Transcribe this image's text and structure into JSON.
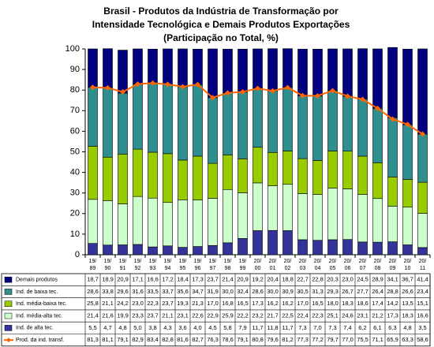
{
  "chart_data": {
    "type": "bar",
    "stacked": true,
    "title": [
      "Brasil - Produtos da Indústria de Transformação por",
      "Intensidade Tecnológica e Demais Produtos Exportações",
      "(Participação no Total, %)"
    ],
    "categories": [
      [
        "19/",
        "89"
      ],
      [
        "19/",
        "90"
      ],
      [
        "19/",
        "91"
      ],
      [
        "19/",
        "92"
      ],
      [
        "19/",
        "93"
      ],
      [
        "19/",
        "94"
      ],
      [
        "19/",
        "95"
      ],
      [
        "19/",
        "96"
      ],
      [
        "19/",
        "97"
      ],
      [
        "19/",
        "98"
      ],
      [
        "19/",
        "99"
      ],
      [
        "20/",
        "00"
      ],
      [
        "20/",
        "01"
      ],
      [
        "20/",
        "02"
      ],
      [
        "20/",
        "03"
      ],
      [
        "20/",
        "04"
      ],
      [
        "20/",
        "05"
      ],
      [
        "20/",
        "06"
      ],
      [
        "20/",
        "07"
      ],
      [
        "20/",
        "08"
      ],
      [
        "20/",
        "09"
      ],
      [
        "20/",
        "10"
      ],
      [
        "20/",
        "11"
      ]
    ],
    "ylim": [
      0,
      100
    ],
    "yticks": [
      0,
      10,
      20,
      30,
      40,
      50,
      60,
      70,
      80,
      90,
      100
    ],
    "grid": false,
    "series": [
      {
        "name": "Demais produtos",
        "color": "#000080",
        "values": [
          18.7,
          18.9,
          20.9,
          17.1,
          16.6,
          17.2,
          18.4,
          17.3,
          23.7,
          21.4,
          20.9,
          19.2,
          20.4,
          18.8,
          22.7,
          22.8,
          20.3,
          23.0,
          24.5,
          28.9,
          34.1,
          36.7,
          41.4
        ],
        "value_labels": [
          "18,7",
          "18,9",
          "20,9",
          "17,1",
          "16,6",
          "17,2",
          "18,4",
          "17,3",
          "23,7",
          "21,4",
          "20,9",
          "19,2",
          "20,4",
          "18,8",
          "22,7",
          "22,8",
          "20,3",
          "23,0",
          "24,5",
          "28,9",
          "34,1",
          "36,7",
          "41,4"
        ]
      },
      {
        "name": "Ind. de baixa tec.",
        "color": "#2f8f8f",
        "values": [
          28.6,
          33.8,
          29.6,
          31.6,
          33.5,
          33.7,
          35.6,
          34.7,
          31.9,
          30.0,
          32.4,
          28.6,
          30.0,
          30.9,
          30.5,
          31.3,
          29.3,
          26.7,
          27.7,
          26.4,
          28.8,
          26.6,
          23.4
        ],
        "value_labels": [
          "28,6",
          "33,8",
          "29,6",
          "31,6",
          "33,5",
          "33,7",
          "35,6",
          "34,7",
          "31,9",
          "30,0",
          "32,4",
          "28,6",
          "30,0",
          "30,9",
          "30,5",
          "31,3",
          "29,3",
          "26,7",
          "27,7",
          "26,4",
          "28,8",
          "26,6",
          "23,4"
        ]
      },
      {
        "name": "Ind. média-baixa tec.",
        "color": "#99cc00",
        "values": [
          25.8,
          21.1,
          24.2,
          23.0,
          22.3,
          23.7,
          19.3,
          21.3,
          17.0,
          16.8,
          16.5,
          17.3,
          16.2,
          16.2,
          17.0,
          16.5,
          18.0,
          18.3,
          18.6,
          17.4,
          14.2,
          13.5,
          15.1
        ],
        "value_labels": [
          "25,8",
          "21,1",
          "24,2",
          "23,0",
          "22,3",
          "23,7",
          "19,3",
          "21,3",
          "17,0",
          "16,8",
          "16,5",
          "17,3",
          "16,2",
          "16,2",
          "17,0",
          "16,5",
          "18,0",
          "18,3",
          "18,6",
          "17,4",
          "14,2",
          "13,5",
          "15,1"
        ]
      },
      {
        "name": "Ind. média-alta tec.",
        "color": "#ccffcc",
        "values": [
          21.4,
          21.6,
          19.9,
          23.3,
          23.7,
          21.1,
          23.1,
          22.6,
          22.9,
          25.9,
          22.2,
          23.2,
          21.7,
          22.5,
          22.4,
          22.3,
          25.1,
          24.6,
          23.1,
          21.2,
          17.3,
          18.3,
          16.6
        ],
        "value_labels": [
          "21,4",
          "21,6",
          "19,9",
          "23,3",
          "23,7",
          "21,1",
          "23,1",
          "22,6",
          "22,9",
          "25,9",
          "22,2",
          "23,2",
          "21,7",
          "22,5",
          "22,4",
          "22,3",
          "25,1",
          "24,6",
          "23,1",
          "21,2",
          "17,3",
          "18,3",
          "16,6"
        ]
      },
      {
        "name": "Ind. de alta tec.",
        "color": "#333399",
        "values": [
          5.5,
          4.7,
          4.8,
          5.0,
          3.8,
          4.3,
          3.6,
          4.0,
          4.5,
          5.8,
          7.9,
          11.7,
          11.8,
          11.7,
          7.3,
          7.0,
          7.3,
          7.4,
          6.2,
          6.1,
          6.3,
          4.8,
          3.5
        ],
        "value_labels": [
          "5,5",
          "4,7",
          "4,8",
          "5,0",
          "3,8",
          "4,3",
          "3,6",
          "4,0",
          "4,5",
          "5,8",
          "7,9",
          "11,7",
          "11,8",
          "11,7",
          "7,3",
          "7,0",
          "7,3",
          "7,4",
          "6,2",
          "6,1",
          "6,3",
          "4,8",
          "3,5"
        ]
      },
      {
        "name": "Prod. da ind. transf.",
        "color": "#ff6600",
        "type": "line",
        "values": [
          81.3,
          81.1,
          79.1,
          82.9,
          83.4,
          82.8,
          81.6,
          82.7,
          76.3,
          78.6,
          79.1,
          80.8,
          79.6,
          81.2,
          77.3,
          77.2,
          79.7,
          77.0,
          75.5,
          71.1,
          65.9,
          63.3,
          58.6
        ],
        "value_labels": [
          "81,3",
          "81,1",
          "79,1",
          "82,9",
          "83,4",
          "82,8",
          "81,6",
          "82,7",
          "76,3",
          "78,6",
          "79,1",
          "80,8",
          "79,6",
          "81,2",
          "77,3",
          "77,2",
          "79,7",
          "77,0",
          "75,5",
          "71,1",
          "65,9",
          "63,3",
          "58,6"
        ]
      }
    ]
  }
}
